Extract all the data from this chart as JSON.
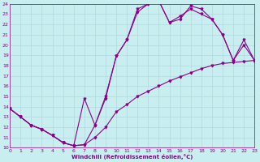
{
  "xlabel": "Windchill (Refroidissement éolien,°C)",
  "bg_color": "#c8eef0",
  "line_color": "#8b008b",
  "grid_color": "#b0d8dc",
  "xmin": 0,
  "xmax": 23,
  "ymin": 10,
  "ymax": 24,
  "yticks": [
    10,
    11,
    12,
    13,
    14,
    15,
    16,
    17,
    18,
    19,
    20,
    21,
    22,
    23,
    24
  ],
  "xticks": [
    0,
    1,
    2,
    3,
    4,
    5,
    6,
    7,
    8,
    9,
    10,
    11,
    12,
    13,
    14,
    15,
    16,
    17,
    18,
    19,
    20,
    21,
    22,
    23
  ],
  "line1_x": [
    0,
    1,
    2,
    3,
    4,
    5,
    6,
    7,
    8,
    9,
    10,
    11,
    12,
    13,
    14,
    15,
    16,
    17,
    18,
    19,
    20,
    21,
    22,
    23
  ],
  "line1_y": [
    13.8,
    13.0,
    12.2,
    11.8,
    11.2,
    10.5,
    10.2,
    10.3,
    11.0,
    12.0,
    13.5,
    14.2,
    15.0,
    15.5,
    16.0,
    16.5,
    16.9,
    17.3,
    17.7,
    18.0,
    18.2,
    18.3,
    18.4,
    18.5
  ],
  "line2_x": [
    0,
    1,
    2,
    3,
    4,
    5,
    6,
    7,
    8,
    9,
    10,
    11,
    12,
    13,
    14,
    15,
    16,
    17,
    18,
    19,
    20,
    21,
    22,
    23
  ],
  "line2_y": [
    13.8,
    13.0,
    12.2,
    11.8,
    11.2,
    10.5,
    10.2,
    10.3,
    12.2,
    14.8,
    18.9,
    20.5,
    23.2,
    24.0,
    24.3,
    22.2,
    22.8,
    23.5,
    23.0,
    22.5,
    21.0,
    18.5,
    20.0,
    18.5
  ],
  "line3_x": [
    0,
    1,
    2,
    3,
    4,
    5,
    6,
    7,
    8,
    9,
    10,
    11,
    12,
    13,
    14,
    15,
    16,
    17,
    18,
    19,
    20,
    21,
    22,
    23
  ],
  "line3_y": [
    13.8,
    13.0,
    12.2,
    11.8,
    11.2,
    10.5,
    10.2,
    14.8,
    12.2,
    15.0,
    18.9,
    20.5,
    23.5,
    24.0,
    24.3,
    22.2,
    22.5,
    23.8,
    23.5,
    22.5,
    21.0,
    18.5,
    20.5,
    18.5
  ]
}
